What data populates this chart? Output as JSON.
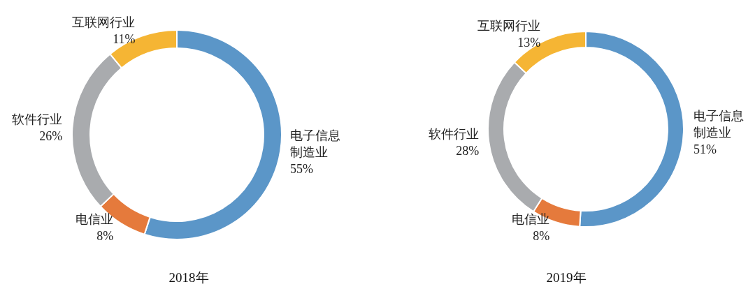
{
  "chart_data": [
    {
      "type": "donut",
      "title": "2018年",
      "categories": [
        "电子信息制造业",
        "电信业",
        "软件行业",
        "互联网行业"
      ],
      "values": [
        55,
        8,
        26,
        11
      ],
      "value_labels": [
        "55%",
        "8%",
        "26%",
        "11%"
      ],
      "colors": [
        "#5b96c8",
        "#e57a3c",
        "#a9abae",
        "#f5b534"
      ]
    },
    {
      "type": "donut",
      "title": "2019年",
      "categories": [
        "电子信息制造业",
        "电信业",
        "软件行业",
        "互联网行业"
      ],
      "values": [
        51,
        8,
        28,
        13
      ],
      "value_labels": [
        "51%",
        "8%",
        "28%",
        "13%"
      ],
      "colors": [
        "#5b96c8",
        "#e57a3c",
        "#a9abae",
        "#f5b534"
      ]
    }
  ]
}
